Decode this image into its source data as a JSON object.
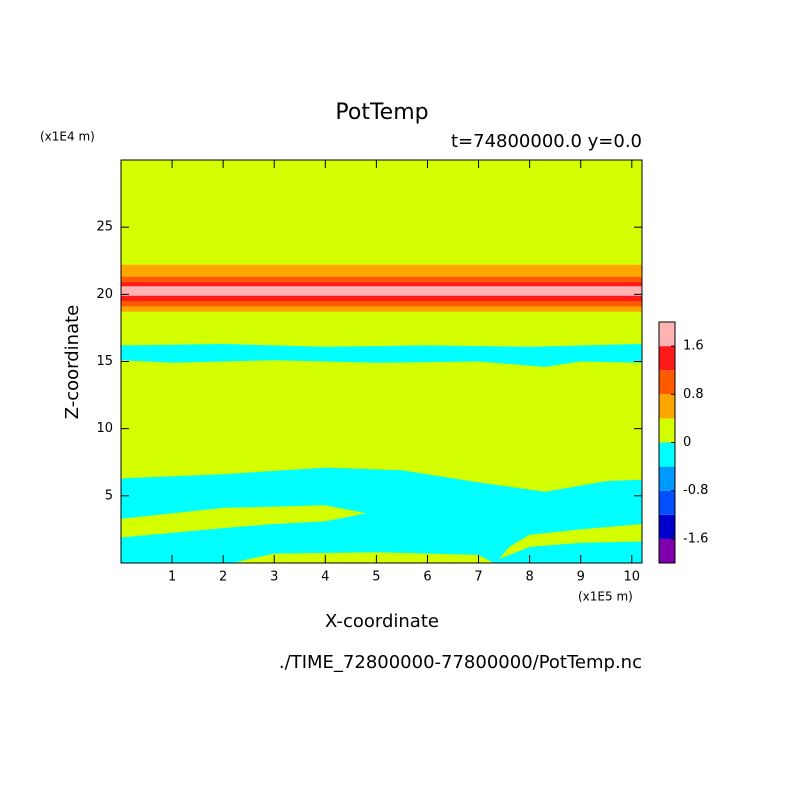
{
  "chart_data": {
    "type": "contour",
    "title": "PotTemp",
    "subtitle": "t=74800000.0 y=0.0",
    "x_label": "X-coordinate",
    "y_label": "Z-coordinate",
    "x_unit": "(x1E5 m)",
    "y_unit": "(x1E4 m)",
    "source": "./TIME_72800000-77800000/PotTemp.nc",
    "xlim": [
      0,
      10.2
    ],
    "ylim": [
      0,
      30
    ],
    "xticks": [
      1,
      2,
      3,
      4,
      5,
      6,
      7,
      8,
      9,
      10
    ],
    "yticks": [
      5,
      10,
      15,
      20,
      25
    ],
    "colorbar": {
      "levels": [
        -2,
        -1.6,
        -1.2,
        -0.8,
        -0.4,
        0,
        0.4,
        0.8,
        1.2,
        1.6,
        2
      ],
      "colors": [
        "#8000b0",
        "#0000cc",
        "#0050ff",
        "#0099ff",
        "#00ffff",
        "#d4ff00",
        "#ffa500",
        "#ff5a00",
        "#ff1a1a",
        "#ffb4b4"
      ],
      "ticks": [
        -1.6,
        -0.8,
        0,
        0.8,
        1.6
      ]
    },
    "regions": [
      {
        "level": 0,
        "x": [
          0,
          10.2,
          10.2,
          0
        ],
        "z": [
          0,
          0,
          30,
          30
        ]
      },
      {
        "level": 0.4,
        "x": [
          0,
          10.2,
          10.2,
          0
        ],
        "z": [
          18.7,
          18.7,
          22.2,
          22.2
        ]
      },
      {
        "level": 0.8,
        "x": [
          0,
          10.2,
          10.2,
          0
        ],
        "z": [
          19.1,
          19.1,
          21.3,
          21.3
        ]
      },
      {
        "level": 1.2,
        "x": [
          0,
          10.2,
          10.2,
          0
        ],
        "z": [
          19.5,
          19.5,
          20.9,
          20.9
        ]
      },
      {
        "level": 1.6,
        "x": [
          0,
          10.2,
          10.2,
          0
        ],
        "z": [
          19.9,
          19.9,
          20.6,
          20.6
        ]
      },
      {
        "level": -0.4,
        "x": [
          0,
          2,
          4,
          6,
          8,
          10.2,
          10.2,
          9,
          8.3,
          7,
          5,
          3,
          1,
          0
        ],
        "z": [
          16.2,
          16.3,
          16.1,
          16.2,
          16.1,
          16.3,
          14.9,
          15,
          14.6,
          15,
          14.9,
          15.1,
          14.9,
          15.1
        ]
      },
      {
        "level": -0.4,
        "x": [
          0,
          10.2,
          10.2,
          9.5,
          8.3,
          7,
          5.5,
          4,
          2,
          0
        ],
        "z": [
          0,
          0,
          6.2,
          6.1,
          5.3,
          6,
          6.9,
          7.1,
          6.6,
          6.3
        ]
      },
      {
        "level": 0,
        "x": [
          0,
          2,
          3,
          4,
          4.8,
          4,
          2,
          0
        ],
        "z": [
          1.9,
          2.6,
          2.9,
          3.1,
          3.7,
          4.3,
          4.1,
          3.3
        ]
      },
      {
        "level": 0,
        "x": [
          2.2,
          7.3,
          7,
          5,
          3,
          2.5
        ],
        "z": [
          0,
          0,
          0.6,
          0.8,
          0.7,
          0.3
        ]
      },
      {
        "level": 0,
        "x": [
          7.4,
          8,
          9,
          10.2,
          10.2,
          9,
          8,
          7.6
        ],
        "z": [
          0.3,
          1.2,
          1.5,
          1.6,
          2.9,
          2.5,
          2.1,
          1.2
        ]
      }
    ]
  }
}
